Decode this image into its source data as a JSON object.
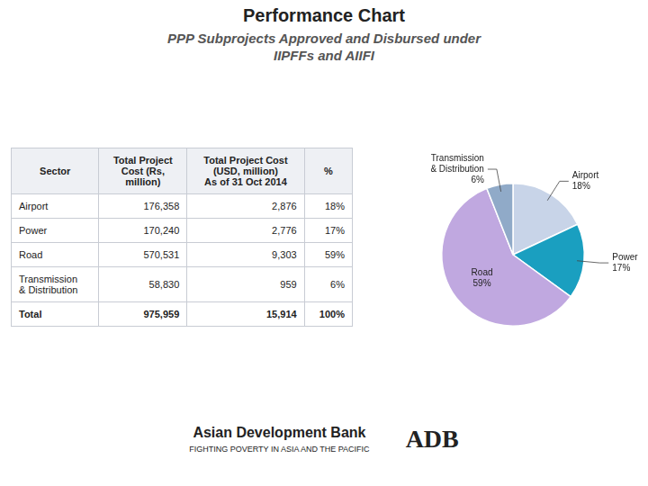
{
  "chart_data": {
    "type": "pie",
    "title": "Performance Chart",
    "subtitle": [
      "PPP Subprojects Approved and Disbursed under",
      "IIPFFs and AIIFI"
    ],
    "categories": [
      "Airport",
      "Power",
      "Road",
      "Transmission\n& Distribution"
    ],
    "values": [
      18,
      17,
      59,
      6
    ],
    "value_labels": [
      "18%",
      "17%",
      "59%",
      "6%"
    ],
    "colors": [
      "#c8d4e8",
      "#1a9fc0",
      "#c0a8e0",
      "#90aac8"
    ],
    "data_labels": true,
    "table": {
      "headers": [
        "Sector",
        "Total Project\nCost (Rs,\nmillion)",
        "Total Project Cost\n(USD, million)\nAs of 31 Oct 2014",
        "%"
      ],
      "rows": [
        [
          "Airport",
          "176,358",
          "2,876",
          "18%"
        ],
        [
          "Power",
          "170,240",
          "2,776",
          "17%"
        ],
        [
          "Road",
          "570,531",
          "9,303",
          "59%"
        ],
        [
          "Transmission\n& Distribution",
          "58,830",
          "959",
          "6%"
        ],
        [
          "Total",
          "975,959",
          "15,914",
          "100%"
        ]
      ]
    },
    "annotations": [
      "Asian Development Bank",
      "FIGHTING POVERTY IN ASIA AND THE PACIFIC",
      "ADB"
    ]
  }
}
